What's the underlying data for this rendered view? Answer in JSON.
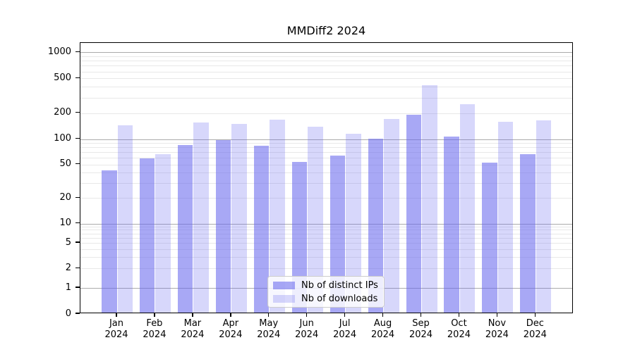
{
  "title": "MMDiff2 2024",
  "year": "2024",
  "months": [
    "Jan",
    "Feb",
    "Mar",
    "Apr",
    "May",
    "Jun",
    "Jul",
    "Aug",
    "Sep",
    "Oct",
    "Nov",
    "Dec"
  ],
  "y_tick_labels": [
    "0",
    "1",
    "2",
    "5",
    "10",
    "20",
    "50",
    "100",
    "200",
    "500",
    "1000"
  ],
  "legend": {
    "items": [
      {
        "label": "Nb of distinct IPs",
        "color": "rgba(102,102,238,0.57)"
      },
      {
        "label": "Nb of downloads",
        "color": "rgba(102,102,238,0.26)"
      }
    ]
  },
  "colors": {
    "bar_distinct_ips": "rgba(102,102,238,0.57)",
    "bar_downloads": "rgba(102,102,238,0.26)",
    "grid_major": "#ababab",
    "grid_minor": "#e8e8e8",
    "axis": "#000000"
  },
  "chart_data": {
    "type": "bar",
    "title": "MMDiff2 2024",
    "categories": [
      "Jan 2024",
      "Feb 2024",
      "Mar 2024",
      "Apr 2024",
      "May 2024",
      "Jun 2024",
      "Jul 2024",
      "Aug 2024",
      "Sep 2024",
      "Oct 2024",
      "Nov 2024",
      "Dec 2024"
    ],
    "series": [
      {
        "name": "Nb of distinct IPs",
        "values": [
          43,
          59,
          86,
          98,
          83,
          54,
          64,
          102,
          192,
          108,
          53,
          67
        ]
      },
      {
        "name": "Nb of downloads",
        "values": [
          144,
          67,
          155,
          151,
          167,
          140,
          116,
          170,
          420,
          252,
          158,
          164
        ]
      }
    ],
    "xlabel": "",
    "ylabel": "",
    "yscale": "log-with-zero",
    "ylim": [
      0,
      1000
    ],
    "y_ticks": [
      0,
      1,
      2,
      5,
      10,
      20,
      50,
      100,
      200,
      500,
      1000
    ],
    "grid": true,
    "legend_position": "lower center"
  }
}
